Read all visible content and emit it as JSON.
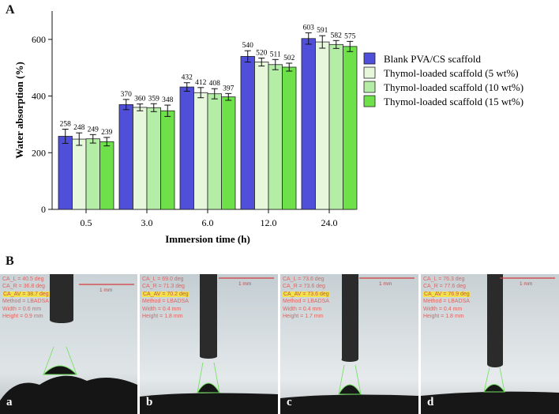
{
  "panels": {
    "a_letter": "A",
    "b_letter": "B"
  },
  "chart_data": {
    "type": "bar",
    "title": "",
    "xlabel": "Immersion time (h)",
    "ylabel": "Water absorption (%)",
    "ylim": [
      0,
      700
    ],
    "yticks": [
      0,
      200,
      400,
      600
    ],
    "categories": [
      "0.5",
      "3.0",
      "6.0",
      "12.0",
      "24.0"
    ],
    "legend_position": "right",
    "series": [
      {
        "name": "Blank PVA/CS scaffold",
        "color": "#4f4fd9",
        "values": [
          258,
          370,
          432,
          540,
          603
        ],
        "errors": [
          25,
          18,
          15,
          20,
          20
        ]
      },
      {
        "name": "Thymol-loaded scaffold (5 wt%)",
        "color": "#e6f7dc",
        "values": [
          248,
          360,
          412,
          520,
          591
        ],
        "errors": [
          22,
          12,
          18,
          14,
          22
        ]
      },
      {
        "name": "Thymol-loaded scaffold (10 wt%)",
        "color": "#b4eda6",
        "values": [
          249,
          359,
          408,
          511,
          582
        ],
        "errors": [
          15,
          14,
          18,
          18,
          14
        ]
      },
      {
        "name": "Thymol-loaded scaffold (15 wt%)",
        "color": "#6ee04a",
        "values": [
          239,
          348,
          397,
          502,
          575
        ],
        "errors": [
          15,
          20,
          12,
          14,
          18
        ]
      }
    ]
  },
  "photos": [
    {
      "letter": "a",
      "scale": "1 mm",
      "lines": [
        "CA_L = 40.5 deg",
        "CA_R = 36.8 deg",
        "CA_AV = 38.7 deg",
        "Method = LBADSA",
        "Width = 0.6 mm",
        "Height = 0.9 mm"
      ]
    },
    {
      "letter": "b",
      "scale": "1 mm",
      "lines": [
        "CA_L = 69.0 deg",
        "CA_R = 71.3 deg",
        "CA_AV = 70.2 deg",
        "Method = LBADSA",
        "Width = 0.4 mm",
        "Height = 1.8 mm"
      ]
    },
    {
      "letter": "c",
      "scale": "1 mm",
      "lines": [
        "CA_L = 73.6 deg",
        "CA_R = 73.6 deg",
        "CA_AV = 73.6 deg",
        "Method = LBADSA",
        "Width = 0.4 mm",
        "Height = 1.7 mm"
      ]
    },
    {
      "letter": "d",
      "scale": "1 mm",
      "lines": [
        "CA_L = 76.3 deg",
        "CA_R = 77.6 deg",
        "CA_AV = 76.9 deg",
        "Method = LBADSA",
        "Width = 0.4 mm",
        "Height = 1.8 mm"
      ]
    }
  ]
}
